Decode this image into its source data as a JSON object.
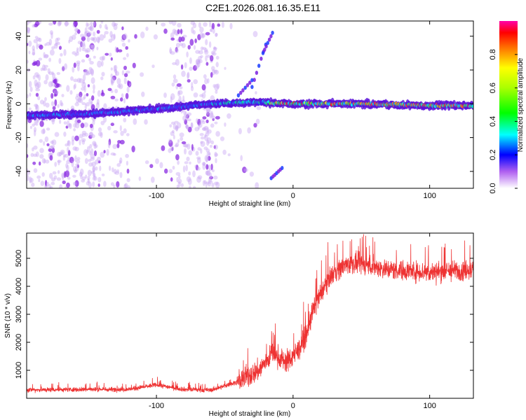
{
  "title": "C2E1.2026.081.16.35.E11",
  "chart_data": [
    {
      "type": "heatmap",
      "xlabel": "Height of straight line (km)",
      "ylabel": "Frequency (Hz)",
      "xlim": [
        -195,
        132
      ],
      "ylim": [
        -50,
        49
      ],
      "xticks": [
        -100,
        0,
        100
      ],
      "xtick_labels": [
        "-100",
        "0",
        "100"
      ],
      "yticks": [
        -40,
        -20,
        0,
        20,
        40
      ],
      "ytick_labels": [
        "-40",
        "-20",
        "0",
        "20",
        "40"
      ],
      "colorbar": {
        "label": "Normalized spectral amplitude",
        "range": [
          0,
          1
        ],
        "ticks": [
          0,
          0.2,
          0.4,
          0.6,
          0.8
        ],
        "tick_labels": [
          "0.0",
          "0.2",
          "0.4",
          "0.6",
          "0.8"
        ]
      },
      "ridge": {
        "description_points_x": [
          -195,
          -150,
          -100,
          -60,
          -30,
          0,
          50,
          100,
          132
        ],
        "description_points_y": [
          -7,
          -6,
          -3,
          0,
          1,
          0,
          0,
          -1,
          -1
        ]
      }
    },
    {
      "type": "line",
      "xlabel": "Height of straight line (km)",
      "ylabel": "SNR (10 * v/v)",
      "xlim": [
        -195,
        132
      ],
      "ylim": [
        0,
        5900
      ],
      "xticks": [
        -100,
        0,
        100
      ],
      "xtick_labels": [
        "-100",
        "0",
        "100"
      ],
      "yticks": [
        1000,
        2000,
        3000,
        4000,
        5000
      ],
      "ytick_labels": [
        "1000",
        "2000",
        "3000",
        "4000",
        "5000"
      ],
      "series": [
        {
          "name": "SNR",
          "color": "#ee3333",
          "x": [
            -195,
            -150,
            -120,
            -100,
            -80,
            -60,
            -40,
            -25,
            -15,
            -5,
            0,
            5,
            10,
            15,
            20,
            25,
            30,
            40,
            50,
            70,
            100,
            132
          ],
          "y": [
            300,
            320,
            320,
            480,
            320,
            290,
            600,
            1000,
            1600,
            1300,
            1500,
            1800,
            2300,
            3200,
            3700,
            4200,
            4500,
            4800,
            4800,
            4600,
            4500,
            4600
          ]
        }
      ]
    }
  ]
}
